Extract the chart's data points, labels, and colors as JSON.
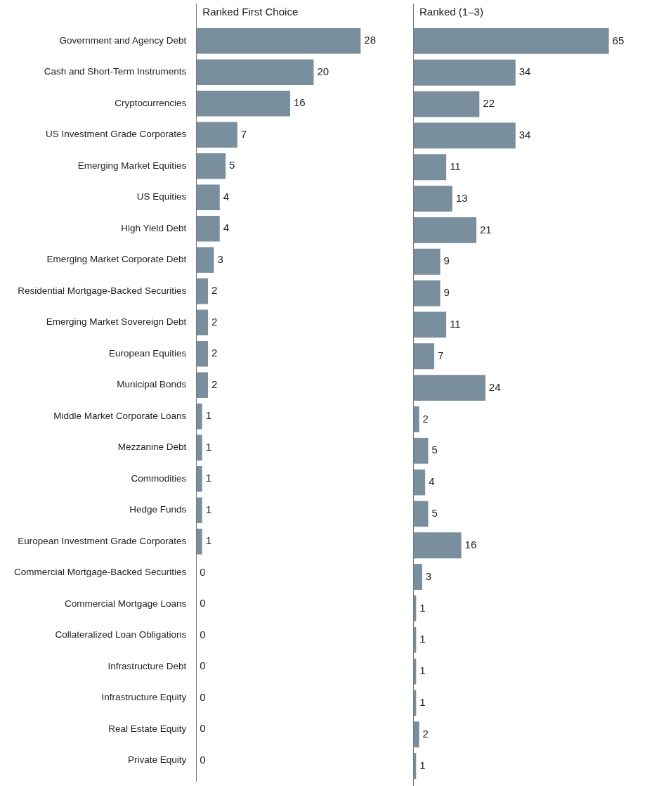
{
  "chart_data": [
    {
      "type": "bar",
      "orientation": "horizontal",
      "title": "Ranked First Choice",
      "categories": [
        "Government and Agency Debt",
        "Cash and Short-Term Instruments",
        "Cryptocurrencies",
        "US Investment Grade Corporates",
        "Emerging Market Equities",
        "US Equities",
        "High Yield Debt",
        "Emerging Market Corporate Debt",
        "Residential Mortgage-Backed Securities",
        "Emerging Market Sovereign Debt",
        "European Equities",
        "Municipal Bonds",
        "Middle Market Corporate Loans",
        "Mezzanine Debt",
        "Commodities",
        "Hedge Funds",
        "European Investment Grade Corporates",
        "Commercial Mortgage-Backed Securities",
        "Commercial Mortgage Loans",
        "Collateralized Loan Obligations",
        "Infrastructure Debt",
        "Infrastructure Equity",
        "Real Estate Equity",
        "Private Equity"
      ],
      "values": [
        28,
        20,
        16,
        7,
        5,
        4,
        4,
        3,
        2,
        2,
        2,
        2,
        1,
        1,
        1,
        1,
        1,
        0,
        0,
        0,
        0,
        0,
        0,
        0
      ],
      "color": "#7a8f9e",
      "data_labels": true,
      "tick_labels": "y",
      "legend": false
    },
    {
      "type": "bar",
      "orientation": "horizontal",
      "title": "Ranked (1–3)",
      "categories": [
        null,
        null,
        null,
        null,
        null,
        null,
        null,
        null,
        null,
        null,
        null,
        null,
        null,
        null,
        null,
        null,
        null,
        null,
        null,
        null,
        null,
        null,
        null,
        null
      ],
      "values": [
        65,
        34,
        22,
        34,
        11,
        13,
        21,
        9,
        9,
        11,
        7,
        24,
        2,
        5,
        4,
        5,
        16,
        3,
        1,
        1,
        1,
        1,
        2,
        1
      ],
      "color": "#7a8f9e",
      "data_labels": true,
      "tick_labels": false,
      "legend": false
    }
  ]
}
